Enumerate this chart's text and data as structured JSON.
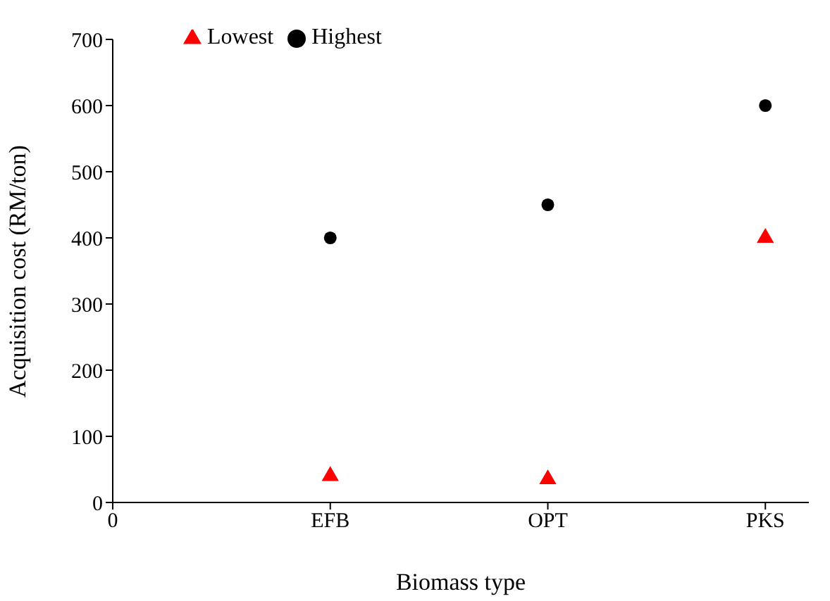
{
  "chart_data": {
    "type": "scatter",
    "xlabel": "Biomass type",
    "ylabel": "Acquisition cost (RM/ton)",
    "categories": [
      "0",
      "EFB",
      "OPT",
      "PKS"
    ],
    "ylim": [
      0,
      700
    ],
    "yticks": [
      0,
      100,
      200,
      300,
      400,
      500,
      600,
      700
    ],
    "series": [
      {
        "name": "Lowest",
        "color": "#ff0000",
        "marker": "triangle",
        "values": [
          null,
          40,
          35,
          400
        ]
      },
      {
        "name": "Highest",
        "color": "#000000",
        "marker": "circle",
        "values": [
          null,
          400,
          450,
          600
        ]
      }
    ],
    "grid": false,
    "legend": "top left"
  }
}
